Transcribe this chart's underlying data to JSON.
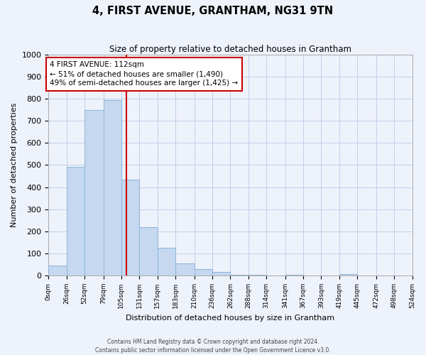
{
  "title": "4, FIRST AVENUE, GRANTHAM, NG31 9TN",
  "subtitle": "Size of property relative to detached houses in Grantham",
  "xlabel": "Distribution of detached houses by size in Grantham",
  "ylabel": "Number of detached properties",
  "bar_color": "#c5d8f0",
  "bar_edge_color": "#8cb4d8",
  "background_color": "#eef2fb",
  "grid_color": "#c0cfe8",
  "vline_x": 112,
  "vline_color": "#cc0000",
  "annotation_title": "4 FIRST AVENUE: 112sqm",
  "annotation_line1": "← 51% of detached houses are smaller (1,490)",
  "annotation_line2": "49% of semi-detached houses are larger (1,425) →",
  "annotation_box_color": "#ffffff",
  "annotation_box_edge_color": "#cc0000",
  "footer_line1": "Contains HM Land Registry data © Crown copyright and database right 2024.",
  "footer_line2": "Contains public sector information licensed under the Open Government Licence v3.0.",
  "bin_edges": [
    0,
    26,
    52,
    79,
    105,
    131,
    157,
    183,
    210,
    236,
    262,
    288,
    314,
    341,
    367,
    393,
    419,
    445,
    472,
    498,
    524
  ],
  "bin_labels": [
    "0sqm",
    "26sqm",
    "52sqm",
    "79sqm",
    "105sqm",
    "131sqm",
    "157sqm",
    "183sqm",
    "210sqm",
    "236sqm",
    "262sqm",
    "288sqm",
    "314sqm",
    "341sqm",
    "367sqm",
    "393sqm",
    "419sqm",
    "445sqm",
    "472sqm",
    "498sqm",
    "524sqm"
  ],
  "counts": [
    45,
    490,
    750,
    795,
    435,
    220,
    125,
    55,
    30,
    15,
    5,
    5,
    0,
    5,
    0,
    0,
    8,
    0,
    0,
    0
  ],
  "ylim": [
    0,
    1000
  ],
  "yticks": [
    0,
    100,
    200,
    300,
    400,
    500,
    600,
    700,
    800,
    900,
    1000
  ]
}
